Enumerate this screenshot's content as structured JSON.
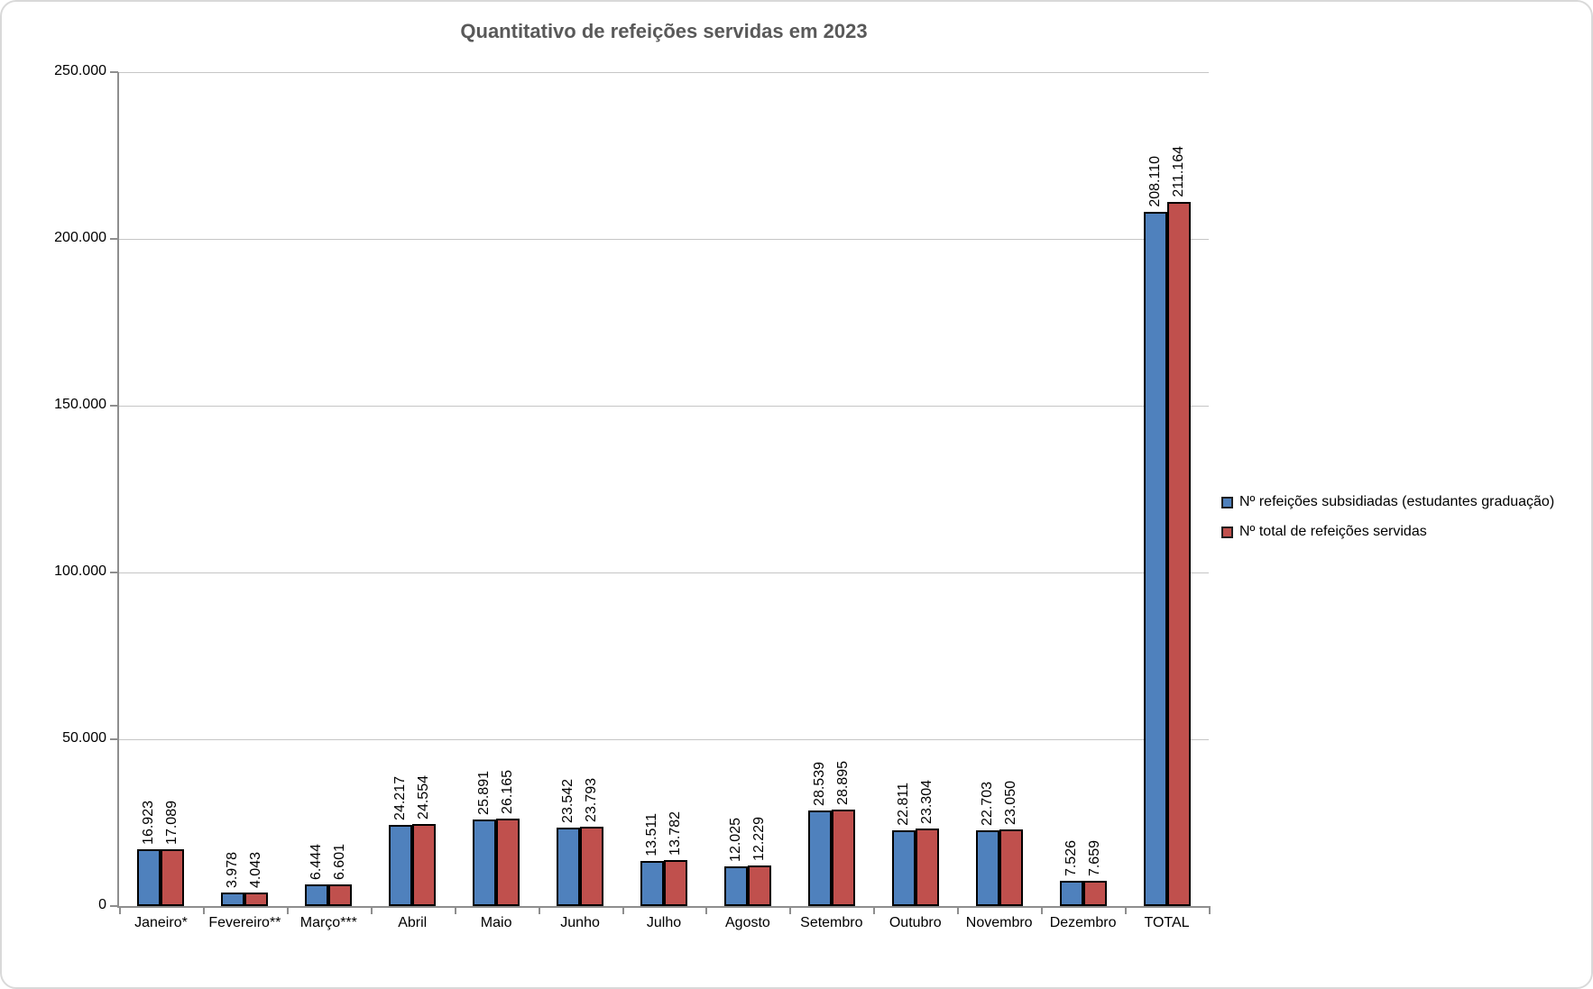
{
  "chart_data": {
    "type": "bar",
    "title": "Quantitativo de refeições servidas em 2023",
    "categories": [
      "Janeiro*",
      "Fevereiro**",
      "Março***",
      "Abril",
      "Maio",
      "Junho",
      "Julho",
      "Agosto",
      "Setembro",
      "Outubro",
      "Novembro",
      "Dezembro",
      "TOTAL"
    ],
    "series": [
      {
        "name": "Nº refeições subsidiadas (estudantes graduação)",
        "color": "#4f81bd",
        "values": [
          16923,
          3978,
          6444,
          24217,
          25891,
          23542,
          13511,
          12025,
          28539,
          22811,
          22703,
          7526,
          208110
        ],
        "value_labels": [
          "16.923",
          "3.978",
          "6.444",
          "24.217",
          "25.891",
          "23.542",
          "13.511",
          "12.025",
          "28.539",
          "22.811",
          "22.703",
          "7.526",
          "208.110"
        ]
      },
      {
        "name": "Nº total de refeições servidas",
        "color": "#c0504d",
        "values": [
          17089,
          4043,
          6601,
          24554,
          26165,
          23793,
          13782,
          12229,
          28895,
          23304,
          23050,
          7659,
          211164
        ],
        "value_labels": [
          "17.089",
          "4.043",
          "6.601",
          "24.554",
          "26.165",
          "23.793",
          "13.782",
          "12.229",
          "28.895",
          "23.304",
          "23.050",
          "7.659",
          "211.164"
        ]
      }
    ],
    "ylim": [
      0,
      250000
    ],
    "ytick_interval": 50000,
    "ytick_labels": [
      "0",
      "50.000",
      "100.000",
      "150.000",
      "200.000",
      "250.000"
    ],
    "grid": true,
    "legend_position": "right",
    "data_labels": "rotated-vertical-above-bars",
    "colors": {
      "title_text": "#595959",
      "axis_line": "#8e8e8e",
      "gridline": "#c6c6c6",
      "bar_border": "#000000",
      "chart_border": "#d9d9d9"
    }
  }
}
